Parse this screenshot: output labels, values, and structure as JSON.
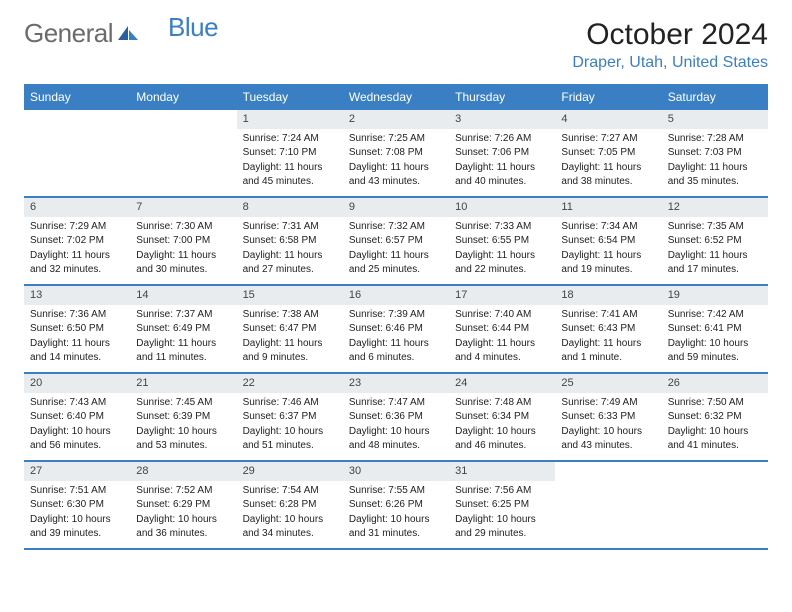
{
  "logo": {
    "text1": "General",
    "text2": "Blue"
  },
  "title": "October 2024",
  "location": "Draper, Utah, United States",
  "colors": {
    "accent": "#3a7fc4",
    "header_bg": "#3a7fc4",
    "header_text": "#ffffff",
    "daynum_bg": "#e8ecef",
    "logo_gray": "#6b6b6b",
    "text": "#222222",
    "background": "#ffffff"
  },
  "calendar": {
    "type": "table",
    "columns": [
      "Sunday",
      "Monday",
      "Tuesday",
      "Wednesday",
      "Thursday",
      "Friday",
      "Saturday"
    ],
    "weeks": [
      [
        null,
        null,
        {
          "n": "1",
          "sunrise": "Sunrise: 7:24 AM",
          "sunset": "Sunset: 7:10 PM",
          "day1": "Daylight: 11 hours",
          "day2": "and 45 minutes."
        },
        {
          "n": "2",
          "sunrise": "Sunrise: 7:25 AM",
          "sunset": "Sunset: 7:08 PM",
          "day1": "Daylight: 11 hours",
          "day2": "and 43 minutes."
        },
        {
          "n": "3",
          "sunrise": "Sunrise: 7:26 AM",
          "sunset": "Sunset: 7:06 PM",
          "day1": "Daylight: 11 hours",
          "day2": "and 40 minutes."
        },
        {
          "n": "4",
          "sunrise": "Sunrise: 7:27 AM",
          "sunset": "Sunset: 7:05 PM",
          "day1": "Daylight: 11 hours",
          "day2": "and 38 minutes."
        },
        {
          "n": "5",
          "sunrise": "Sunrise: 7:28 AM",
          "sunset": "Sunset: 7:03 PM",
          "day1": "Daylight: 11 hours",
          "day2": "and 35 minutes."
        }
      ],
      [
        {
          "n": "6",
          "sunrise": "Sunrise: 7:29 AM",
          "sunset": "Sunset: 7:02 PM",
          "day1": "Daylight: 11 hours",
          "day2": "and 32 minutes."
        },
        {
          "n": "7",
          "sunrise": "Sunrise: 7:30 AM",
          "sunset": "Sunset: 7:00 PM",
          "day1": "Daylight: 11 hours",
          "day2": "and 30 minutes."
        },
        {
          "n": "8",
          "sunrise": "Sunrise: 7:31 AM",
          "sunset": "Sunset: 6:58 PM",
          "day1": "Daylight: 11 hours",
          "day2": "and 27 minutes."
        },
        {
          "n": "9",
          "sunrise": "Sunrise: 7:32 AM",
          "sunset": "Sunset: 6:57 PM",
          "day1": "Daylight: 11 hours",
          "day2": "and 25 minutes."
        },
        {
          "n": "10",
          "sunrise": "Sunrise: 7:33 AM",
          "sunset": "Sunset: 6:55 PM",
          "day1": "Daylight: 11 hours",
          "day2": "and 22 minutes."
        },
        {
          "n": "11",
          "sunrise": "Sunrise: 7:34 AM",
          "sunset": "Sunset: 6:54 PM",
          "day1": "Daylight: 11 hours",
          "day2": "and 19 minutes."
        },
        {
          "n": "12",
          "sunrise": "Sunrise: 7:35 AM",
          "sunset": "Sunset: 6:52 PM",
          "day1": "Daylight: 11 hours",
          "day2": "and 17 minutes."
        }
      ],
      [
        {
          "n": "13",
          "sunrise": "Sunrise: 7:36 AM",
          "sunset": "Sunset: 6:50 PM",
          "day1": "Daylight: 11 hours",
          "day2": "and 14 minutes."
        },
        {
          "n": "14",
          "sunrise": "Sunrise: 7:37 AM",
          "sunset": "Sunset: 6:49 PM",
          "day1": "Daylight: 11 hours",
          "day2": "and 11 minutes."
        },
        {
          "n": "15",
          "sunrise": "Sunrise: 7:38 AM",
          "sunset": "Sunset: 6:47 PM",
          "day1": "Daylight: 11 hours",
          "day2": "and 9 minutes."
        },
        {
          "n": "16",
          "sunrise": "Sunrise: 7:39 AM",
          "sunset": "Sunset: 6:46 PM",
          "day1": "Daylight: 11 hours",
          "day2": "and 6 minutes."
        },
        {
          "n": "17",
          "sunrise": "Sunrise: 7:40 AM",
          "sunset": "Sunset: 6:44 PM",
          "day1": "Daylight: 11 hours",
          "day2": "and 4 minutes."
        },
        {
          "n": "18",
          "sunrise": "Sunrise: 7:41 AM",
          "sunset": "Sunset: 6:43 PM",
          "day1": "Daylight: 11 hours",
          "day2": "and 1 minute."
        },
        {
          "n": "19",
          "sunrise": "Sunrise: 7:42 AM",
          "sunset": "Sunset: 6:41 PM",
          "day1": "Daylight: 10 hours",
          "day2": "and 59 minutes."
        }
      ],
      [
        {
          "n": "20",
          "sunrise": "Sunrise: 7:43 AM",
          "sunset": "Sunset: 6:40 PM",
          "day1": "Daylight: 10 hours",
          "day2": "and 56 minutes."
        },
        {
          "n": "21",
          "sunrise": "Sunrise: 7:45 AM",
          "sunset": "Sunset: 6:39 PM",
          "day1": "Daylight: 10 hours",
          "day2": "and 53 minutes."
        },
        {
          "n": "22",
          "sunrise": "Sunrise: 7:46 AM",
          "sunset": "Sunset: 6:37 PM",
          "day1": "Daylight: 10 hours",
          "day2": "and 51 minutes."
        },
        {
          "n": "23",
          "sunrise": "Sunrise: 7:47 AM",
          "sunset": "Sunset: 6:36 PM",
          "day1": "Daylight: 10 hours",
          "day2": "and 48 minutes."
        },
        {
          "n": "24",
          "sunrise": "Sunrise: 7:48 AM",
          "sunset": "Sunset: 6:34 PM",
          "day1": "Daylight: 10 hours",
          "day2": "and 46 minutes."
        },
        {
          "n": "25",
          "sunrise": "Sunrise: 7:49 AM",
          "sunset": "Sunset: 6:33 PM",
          "day1": "Daylight: 10 hours",
          "day2": "and 43 minutes."
        },
        {
          "n": "26",
          "sunrise": "Sunrise: 7:50 AM",
          "sunset": "Sunset: 6:32 PM",
          "day1": "Daylight: 10 hours",
          "day2": "and 41 minutes."
        }
      ],
      [
        {
          "n": "27",
          "sunrise": "Sunrise: 7:51 AM",
          "sunset": "Sunset: 6:30 PM",
          "day1": "Daylight: 10 hours",
          "day2": "and 39 minutes."
        },
        {
          "n": "28",
          "sunrise": "Sunrise: 7:52 AM",
          "sunset": "Sunset: 6:29 PM",
          "day1": "Daylight: 10 hours",
          "day2": "and 36 minutes."
        },
        {
          "n": "29",
          "sunrise": "Sunrise: 7:54 AM",
          "sunset": "Sunset: 6:28 PM",
          "day1": "Daylight: 10 hours",
          "day2": "and 34 minutes."
        },
        {
          "n": "30",
          "sunrise": "Sunrise: 7:55 AM",
          "sunset": "Sunset: 6:26 PM",
          "day1": "Daylight: 10 hours",
          "day2": "and 31 minutes."
        },
        {
          "n": "31",
          "sunrise": "Sunrise: 7:56 AM",
          "sunset": "Sunset: 6:25 PM",
          "day1": "Daylight: 10 hours",
          "day2": "and 29 minutes."
        },
        null,
        null
      ]
    ]
  }
}
